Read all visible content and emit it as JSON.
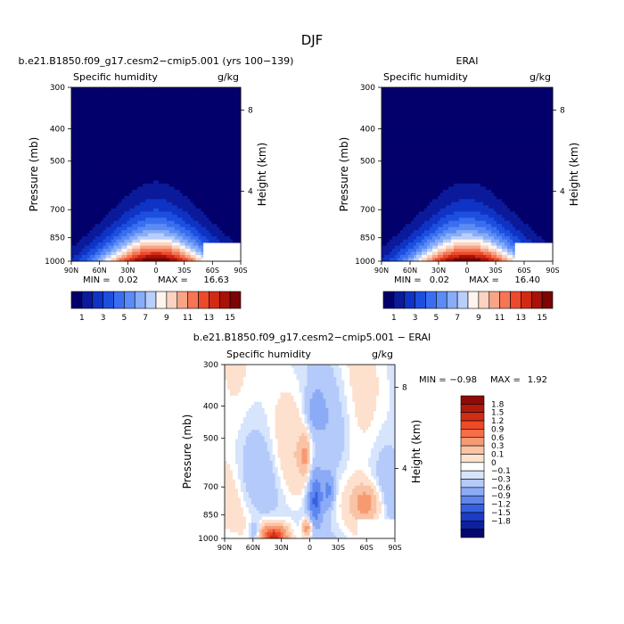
{
  "figure": {
    "title": "DJF",
    "bottom_title": "b.e21.B1850.f09_g17.cesm2−cmip5.001 − ERAI"
  },
  "chart_data": [
    {
      "type": "heatmap",
      "title": "b.e21.B1850.f09_g17.cesm2−cmip5.001 (yrs 100−139)",
      "left_label": "Specific humidity",
      "right_label": "g/kg",
      "ylabel": "Pressure (mb)",
      "ylabel_right": "Height (km)",
      "yticks": [
        "300",
        "400",
        "500",
        "700",
        "850",
        "1000"
      ],
      "yticks_right": [
        "8",
        "4"
      ],
      "xticks": [
        "90N",
        "60N",
        "30N",
        "0",
        "30S",
        "60S",
        "90S"
      ],
      "ylim": [
        1000,
        300
      ],
      "min_label": "MIN =",
      "min": "0.02",
      "max_label": "MAX =",
      "max": "16.63",
      "field": {
        "kind": "humidity",
        "peak": 16.63,
        "center_lat": 0
      }
    },
    {
      "type": "heatmap",
      "title": "ERAI",
      "left_label": "Specific humidity",
      "right_label": "g/kg",
      "ylabel": "Pressure (mb)",
      "ylabel_right": "Height (km)",
      "yticks": [
        "300",
        "400",
        "500",
        "700",
        "850",
        "1000"
      ],
      "yticks_right": [
        "8",
        "4"
      ],
      "xticks": [
        "90N",
        "60N",
        "30N",
        "0",
        "30S",
        "60S",
        "90S"
      ],
      "ylim": [
        1000,
        300
      ],
      "min_label": "MIN =",
      "min": "0.02",
      "max_label": "MAX =",
      "max": "16.40",
      "field": {
        "kind": "humidity",
        "peak": 16.4,
        "center_lat": 0
      }
    },
    {
      "type": "heatmap",
      "title": "",
      "left_label": "Specific humidity",
      "right_label": "g/kg",
      "ylabel": "Pressure (mb)",
      "ylabel_right": "Height (km)",
      "yticks": [
        "300",
        "400",
        "500",
        "700",
        "850",
        "1000"
      ],
      "yticks_right": [
        "8",
        "4"
      ],
      "xticks": [
        "90N",
        "60N",
        "30N",
        "0",
        "30S",
        "60S",
        "90S"
      ],
      "ylim": [
        1000,
        300
      ],
      "min_label": "MIN =",
      "min": "−0.98",
      "max_label": "MAX =",
      "max": "1.92",
      "field": {
        "kind": "difference",
        "min": -0.98,
        "max": 1.92
      }
    }
  ],
  "colorbar_humidity": {
    "labels": [
      "1",
      "3",
      "5",
      "7",
      "9",
      "11",
      "13",
      "15"
    ],
    "colors": [
      "#03006b",
      "#0b1a9a",
      "#0f33c4",
      "#1d4fdf",
      "#3a6ef0",
      "#5b8cf5",
      "#87acf8",
      "#b9cffb",
      "#fdf4ee",
      "#fbd3c0",
      "#f8a587",
      "#f57555",
      "#ec4a2b",
      "#d22a15",
      "#a81208",
      "#7a0504"
    ]
  },
  "colorbar_diff": {
    "labels": [
      "1.8",
      "1.5",
      "1.2",
      "0.9",
      "0.6",
      "0.3",
      "0.1",
      "0",
      "−0.1",
      "−0.3",
      "−0.6",
      "−0.9",
      "−1.2",
      "−1.5",
      "−1.8"
    ],
    "colors": [
      "#8e0a06",
      "#b01a0c",
      "#d02d16",
      "#ee4a28",
      "#f56e48",
      "#f79a72",
      "#f9c3a6",
      "#fde0cd",
      "#ffffff",
      "#d6e4fc",
      "#b4cafa",
      "#8cabf6",
      "#5e86ee",
      "#3560e0",
      "#1b3cc6",
      "#0d209f",
      "#04086e"
    ]
  }
}
